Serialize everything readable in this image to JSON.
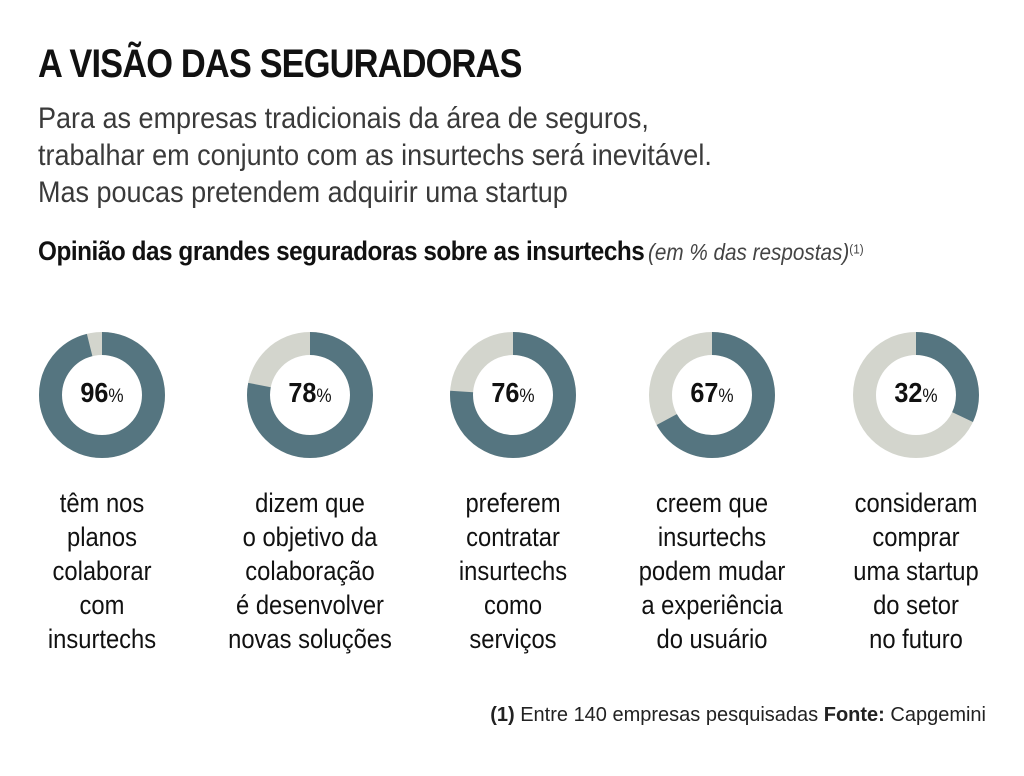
{
  "header": {
    "title": "A VISÃO DAS SEGURADORAS",
    "subtitle_lines": [
      "Para as empresas tradicionais da área de seguros,",
      "trabalhar em conjunto com as insurtechs será inevitável.",
      "Mas poucas pretendem adquirir uma startup"
    ],
    "chart_heading": "Opinião das grandes seguradoras sobre as insurtechs",
    "chart_unit": "(em % das respostas)",
    "chart_note_ref": "(1)"
  },
  "colors": {
    "filled": "#557580",
    "remainder": "#d3d5cd",
    "text": "#111111"
  },
  "chart_data": {
    "type": "pie",
    "variant": "donut",
    "unit_symbol": "%",
    "items": [
      {
        "value": 96,
        "label": "96",
        "caption_lines": [
          "têm nos",
          "planos",
          "colaborar",
          "com",
          "insurtechs"
        ]
      },
      {
        "value": 78,
        "label": "78",
        "caption_lines": [
          "dizem que",
          "o objetivo da",
          "colaboração",
          "é desenvolver",
          "novas soluções"
        ]
      },
      {
        "value": 76,
        "label": "76",
        "caption_lines": [
          "preferem",
          "contratar",
          "insurtechs",
          "como",
          "serviços"
        ]
      },
      {
        "value": 67,
        "label": "67",
        "caption_lines": [
          "creem que",
          "insurtechs",
          "podem mudar",
          "a experiência",
          "do usuário"
        ]
      },
      {
        "value": 32,
        "label": "32",
        "caption_lines": [
          "consideram",
          "comprar",
          "uma startup",
          "do setor",
          "no futuro"
        ]
      }
    ]
  },
  "footnote": {
    "ref": "(1)",
    "text": "Entre 140 empresas pesquisadas",
    "source_label": "Fonte:",
    "source": "Capgemini"
  }
}
